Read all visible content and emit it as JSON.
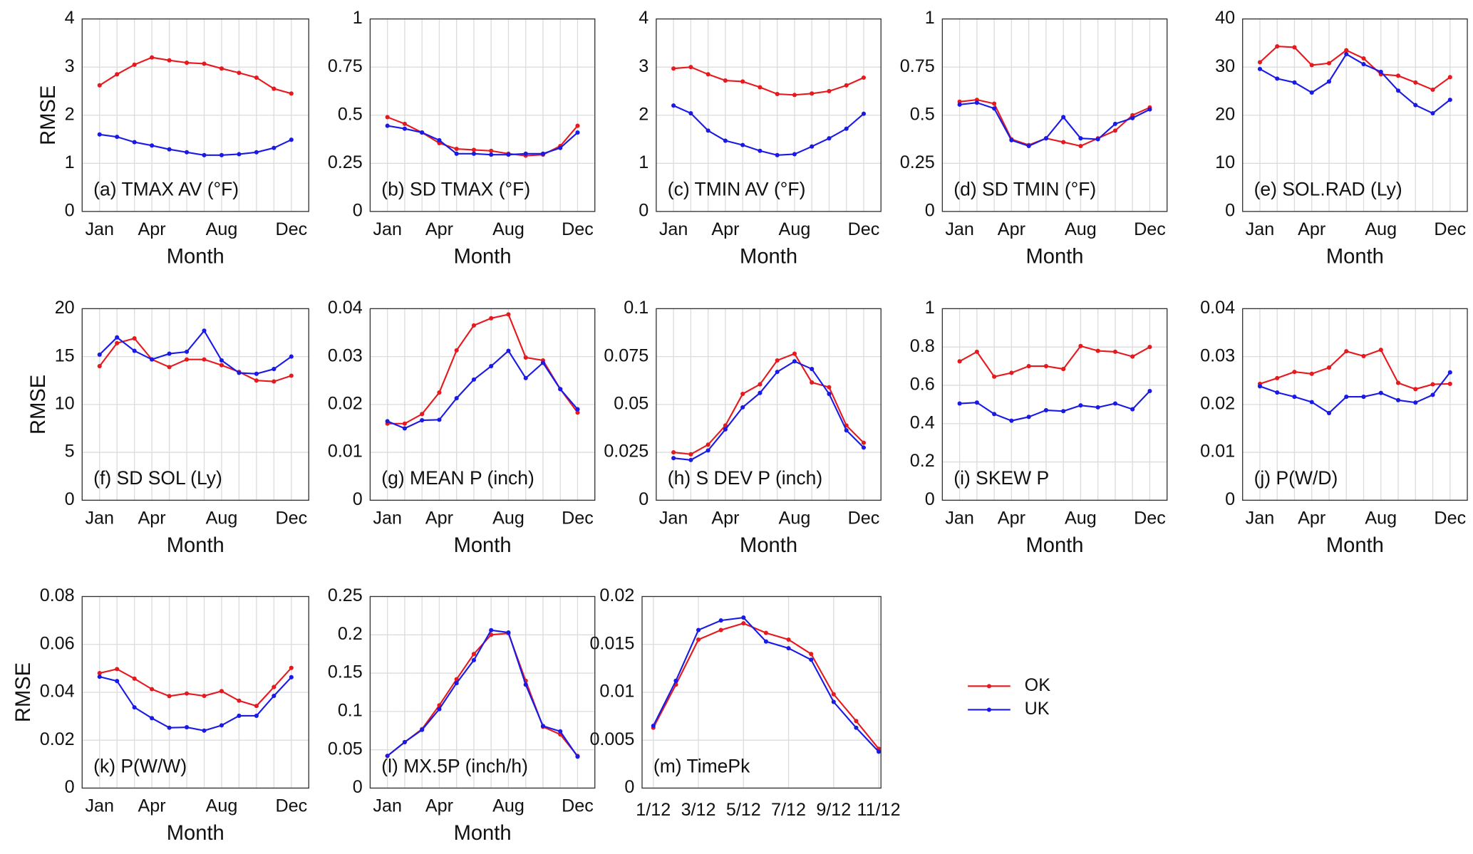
{
  "chart_data": [
    {
      "type": "line",
      "title": "(a) TMAX AV (°F)",
      "ylabel": "RMSE",
      "xlabel": "Month",
      "categories": [
        "Jan",
        null,
        null,
        "Apr",
        null,
        null,
        null,
        "Aug",
        null,
        null,
        null,
        "Dec"
      ],
      "ylim": [
        0,
        4
      ],
      "yticks": [
        0,
        1,
        2,
        3,
        4
      ],
      "grid": true,
      "series": [
        {
          "name": "OK",
          "color": "#e6191e",
          "values": [
            2.62,
            2.85,
            3.05,
            3.2,
            3.14,
            3.09,
            3.07,
            2.97,
            2.88,
            2.78,
            2.55,
            2.45
          ]
        },
        {
          "name": "UK",
          "color": "#1a1ae6",
          "values": [
            1.6,
            1.55,
            1.44,
            1.37,
            1.29,
            1.23,
            1.17,
            1.17,
            1.19,
            1.23,
            1.32,
            1.49
          ]
        }
      ]
    },
    {
      "type": "line",
      "title": "(b) SD TMAX (°F)",
      "xlabel": "Month",
      "categories": [
        "Jan",
        null,
        null,
        "Apr",
        null,
        null,
        null,
        "Aug",
        null,
        null,
        null,
        "Dec"
      ],
      "ylim": [
        0,
        1
      ],
      "yticks": [
        0,
        0.25,
        0.5,
        0.75,
        1
      ],
      "grid": true,
      "series": [
        {
          "name": "OK",
          "color": "#e6191e",
          "values": [
            0.49,
            0.455,
            0.41,
            0.355,
            0.325,
            0.32,
            0.315,
            0.3,
            0.29,
            0.295,
            0.34,
            0.445
          ]
        },
        {
          "name": "UK",
          "color": "#1a1ae6",
          "values": [
            0.445,
            0.43,
            0.41,
            0.37,
            0.3,
            0.3,
            0.295,
            0.295,
            0.3,
            0.3,
            0.33,
            0.41
          ]
        }
      ]
    },
    {
      "type": "line",
      "title": "(c) TMIN AV (°F)",
      "xlabel": "Month",
      "categories": [
        "Jan",
        null,
        null,
        "Apr",
        null,
        null,
        null,
        "Aug",
        null,
        null,
        null,
        "Dec"
      ],
      "ylim": [
        0,
        4
      ],
      "yticks": [
        0,
        1,
        2,
        3,
        4
      ],
      "grid": true,
      "series": [
        {
          "name": "OK",
          "color": "#e6191e",
          "values": [
            2.97,
            3.0,
            2.85,
            2.72,
            2.7,
            2.58,
            2.44,
            2.42,
            2.45,
            2.5,
            2.62,
            2.78
          ]
        },
        {
          "name": "UK",
          "color": "#1a1ae6",
          "values": [
            2.2,
            2.04,
            1.68,
            1.47,
            1.38,
            1.26,
            1.17,
            1.19,
            1.35,
            1.52,
            1.72,
            2.03
          ]
        }
      ]
    },
    {
      "type": "line",
      "title": "(d) SD TMIN (°F)",
      "xlabel": "Month",
      "categories": [
        "Jan",
        null,
        null,
        "Apr",
        null,
        null,
        null,
        "Aug",
        null,
        null,
        null,
        "Dec"
      ],
      "ylim": [
        0,
        1
      ],
      "yticks": [
        0,
        0.25,
        0.5,
        0.75,
        1
      ],
      "grid": true,
      "series": [
        {
          "name": "OK",
          "color": "#e6191e",
          "values": [
            0.57,
            0.58,
            0.56,
            0.375,
            0.345,
            0.38,
            0.36,
            0.34,
            0.38,
            0.42,
            0.5,
            0.54
          ]
        },
        {
          "name": "UK",
          "color": "#1a1ae6",
          "values": [
            0.555,
            0.565,
            0.535,
            0.37,
            0.34,
            0.38,
            0.49,
            0.38,
            0.375,
            0.455,
            0.485,
            0.53
          ]
        }
      ]
    },
    {
      "type": "line",
      "title": "(e) SOL.RAD (Ly)",
      "xlabel": "Month",
      "categories": [
        "Jan",
        null,
        null,
        "Apr",
        null,
        null,
        null,
        "Aug",
        null,
        null,
        null,
        "Dec"
      ],
      "ylim": [
        0,
        40
      ],
      "yticks": [
        0,
        10,
        20,
        30,
        40
      ],
      "grid": true,
      "series": [
        {
          "name": "OK",
          "color": "#e6191e",
          "values": [
            31,
            34.3,
            34.1,
            30.4,
            30.8,
            33.5,
            31.8,
            28.5,
            28.2,
            26.8,
            25.3,
            27.9
          ]
        },
        {
          "name": "UK",
          "color": "#1a1ae6",
          "values": [
            29.6,
            27.6,
            26.8,
            24.7,
            27,
            32.7,
            30.6,
            29,
            25.1,
            22.1,
            20.4,
            23.2
          ]
        }
      ]
    },
    {
      "type": "line",
      "title": "(f) SD SOL (Ly)",
      "ylabel": "RMSE",
      "xlabel": "Month",
      "categories": [
        "Jan",
        null,
        null,
        "Apr",
        null,
        null,
        null,
        "Aug",
        null,
        null,
        null,
        "Dec"
      ],
      "ylim": [
        0,
        20
      ],
      "yticks": [
        0,
        5,
        10,
        15,
        20
      ],
      "grid": true,
      "series": [
        {
          "name": "OK",
          "color": "#e6191e",
          "values": [
            14,
            16.4,
            16.9,
            14.7,
            13.9,
            14.7,
            14.7,
            14.1,
            13.4,
            12.5,
            12.4,
            13
          ]
        },
        {
          "name": "UK",
          "color": "#1a1ae6",
          "values": [
            15.2,
            17,
            15.6,
            14.7,
            15.3,
            15.5,
            17.7,
            14.6,
            13.3,
            13.2,
            13.7,
            15
          ]
        }
      ]
    },
    {
      "type": "line",
      "title": "(g) MEAN P (inch)",
      "xlabel": "Month",
      "categories": [
        "Jan",
        null,
        null,
        "Apr",
        null,
        null,
        null,
        "Aug",
        null,
        null,
        null,
        "Dec"
      ],
      "ylim": [
        0,
        0.04
      ],
      "yticks": [
        0,
        0.01,
        0.02,
        0.03,
        0.04
      ],
      "grid": true,
      "series": [
        {
          "name": "OK",
          "color": "#e6191e",
          "values": [
            0.016,
            0.016,
            0.018,
            0.0225,
            0.0313,
            0.0365,
            0.038,
            0.0388,
            0.0298,
            0.0292,
            0.0232,
            0.0183
          ]
        },
        {
          "name": "UK",
          "color": "#1a1ae6",
          "values": [
            0.0165,
            0.015,
            0.0167,
            0.0168,
            0.0213,
            0.0252,
            0.028,
            0.0312,
            0.0255,
            0.0287,
            0.0232,
            0.019
          ]
        }
      ]
    },
    {
      "type": "line",
      "title": "(h) S DEV P (inch)",
      "xlabel": "Month",
      "categories": [
        "Jan",
        null,
        null,
        "Apr",
        null,
        null,
        null,
        "Aug",
        null,
        null,
        null,
        "Dec"
      ],
      "ylim": [
        0,
        0.1
      ],
      "yticks": [
        0,
        0.025,
        0.05,
        0.075,
        0.1
      ],
      "grid": true,
      "series": [
        {
          "name": "OK",
          "color": "#e6191e",
          "values": [
            0.025,
            0.024,
            0.029,
            0.039,
            0.0555,
            0.0605,
            0.073,
            0.0765,
            0.0615,
            0.059,
            0.039,
            0.03
          ]
        },
        {
          "name": "UK",
          "color": "#1a1ae6",
          "values": [
            0.022,
            0.021,
            0.026,
            0.037,
            0.0485,
            0.056,
            0.067,
            0.0725,
            0.0685,
            0.0555,
            0.0365,
            0.0275
          ]
        }
      ]
    },
    {
      "type": "line",
      "title": "(i) SKEW P",
      "xlabel": "Month",
      "categories": [
        "Jan",
        null,
        null,
        "Apr",
        null,
        null,
        null,
        "Aug",
        null,
        null,
        null,
        "Dec"
      ],
      "ylim": [
        0,
        1
      ],
      "yticks": [
        0,
        0.2,
        0.4,
        0.6,
        0.8,
        1
      ],
      "grid": true,
      "series": [
        {
          "name": "OK",
          "color": "#e6191e",
          "values": [
            0.725,
            0.775,
            0.645,
            0.665,
            0.7,
            0.7,
            0.685,
            0.805,
            0.78,
            0.775,
            0.75,
            0.8
          ]
        },
        {
          "name": "UK",
          "color": "#1a1ae6",
          "values": [
            0.505,
            0.51,
            0.45,
            0.415,
            0.435,
            0.47,
            0.465,
            0.495,
            0.485,
            0.505,
            0.475,
            0.57
          ]
        }
      ]
    },
    {
      "type": "line",
      "title": "(j) P(W/D)",
      "xlabel": "Month",
      "categories": [
        "Jan",
        null,
        null,
        "Apr",
        null,
        null,
        null,
        "Aug",
        null,
        null,
        null,
        "Dec"
      ],
      "ylim": [
        0,
        0.04
      ],
      "yticks": [
        0,
        0.01,
        0.02,
        0.03,
        0.04
      ],
      "grid": true,
      "series": [
        {
          "name": "OK",
          "color": "#e6191e",
          "values": [
            0.0243,
            0.0255,
            0.0268,
            0.0264,
            0.0277,
            0.0311,
            0.0301,
            0.0314,
            0.0245,
            0.0232,
            0.0242,
            0.0243
          ]
        },
        {
          "name": "UK",
          "color": "#1a1ae6",
          "values": [
            0.0238,
            0.0225,
            0.0216,
            0.0205,
            0.0182,
            0.0216,
            0.0216,
            0.0224,
            0.0209,
            0.0204,
            0.022,
            0.0267
          ]
        }
      ]
    },
    {
      "type": "line",
      "title": "(k) P(W/W)",
      "ylabel": "RMSE",
      "xlabel": "Month",
      "categories": [
        "Jan",
        null,
        null,
        "Apr",
        null,
        null,
        null,
        "Aug",
        null,
        null,
        null,
        "Dec"
      ],
      "ylim": [
        0,
        0.08
      ],
      "yticks": [
        0,
        0.02,
        0.04,
        0.06,
        0.08
      ],
      "grid": true,
      "series": [
        {
          "name": "OK",
          "color": "#e6191e",
          "values": [
            0.048,
            0.0497,
            0.0457,
            0.0413,
            0.0384,
            0.0395,
            0.0385,
            0.0405,
            0.0365,
            0.0343,
            0.0422,
            0.0502
          ]
        },
        {
          "name": "UK",
          "color": "#1a1ae6",
          "values": [
            0.0465,
            0.0447,
            0.0337,
            0.0292,
            0.0252,
            0.0254,
            0.024,
            0.0262,
            0.0302,
            0.0302,
            0.0385,
            0.0463
          ]
        }
      ]
    },
    {
      "type": "line",
      "title": "(l) MX.5P (inch/h)",
      "xlabel": "Month",
      "categories": [
        "Jan",
        null,
        null,
        "Apr",
        null,
        null,
        null,
        "Aug",
        null,
        null,
        null,
        "Dec"
      ],
      "ylim": [
        0,
        0.25
      ],
      "yticks": [
        0,
        0.05,
        0.1,
        0.15,
        0.2,
        0.25
      ],
      "grid": true,
      "series": [
        {
          "name": "OK",
          "color": "#e6191e",
          "values": [
            0.042,
            0.06,
            0.077,
            0.108,
            0.142,
            0.175,
            0.2,
            0.202,
            0.14,
            0.08,
            0.07,
            0.042
          ]
        },
        {
          "name": "UK",
          "color": "#1a1ae6",
          "values": [
            0.042,
            0.06,
            0.076,
            0.103,
            0.137,
            0.167,
            0.206,
            0.203,
            0.135,
            0.081,
            0.074,
            0.041
          ]
        }
      ]
    },
    {
      "type": "line",
      "title": "(m) TimePk",
      "x": [
        0.0833,
        0.1667,
        0.25,
        0.3333,
        0.4167,
        0.5,
        0.5833,
        0.6667,
        0.75,
        0.8333,
        0.9167
      ],
      "xlim": [
        0.0417,
        0.925
      ],
      "xticks": [
        {
          "value": 0.0833,
          "label": "1/12"
        },
        {
          "value": 0.25,
          "label": "3/12"
        },
        {
          "value": 0.4167,
          "label": "5/12"
        },
        {
          "value": 0.5833,
          "label": "7/12"
        },
        {
          "value": 0.75,
          "label": "9/12"
        },
        {
          "value": 0.9167,
          "label": "11/12"
        }
      ],
      "ylim": [
        0,
        0.02
      ],
      "yticks": [
        0,
        0.005,
        0.01,
        0.015,
        0.02
      ],
      "grid": true,
      "series": [
        {
          "name": "OK",
          "color": "#e6191e",
          "values": [
            0.0063,
            0.0108,
            0.0155,
            0.0165,
            0.0172,
            0.0162,
            0.0155,
            0.014,
            0.0098,
            0.007,
            0.0041
          ]
        },
        {
          "name": "UK",
          "color": "#1a1ae6",
          "values": [
            0.0065,
            0.0112,
            0.0165,
            0.0175,
            0.0178,
            0.0153,
            0.0146,
            0.0134,
            0.009,
            0.0063,
            0.0038
          ]
        }
      ]
    }
  ]
}
